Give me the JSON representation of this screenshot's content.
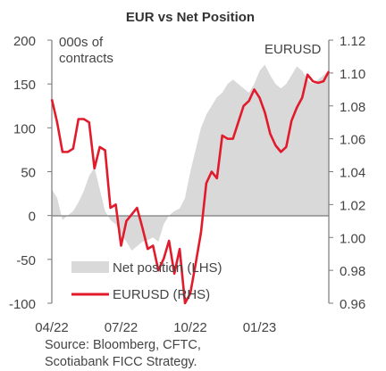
{
  "chart_data": {
    "type": "line",
    "title": "EUR vs Net Position",
    "left_axis_unit": "000s of contracts",
    "right_axis_unit": "EURUSD",
    "left_ticks": [
      "200",
      "150",
      "100",
      "50",
      "0",
      "-50",
      "-100"
    ],
    "left_tick_values": [
      200,
      150,
      100,
      50,
      0,
      -50,
      -100
    ],
    "left_ylim": [
      -100,
      200
    ],
    "right_ticks": [
      "1.12",
      "1.10",
      "1.08",
      "1.06",
      "1.04",
      "1.02",
      "1.00",
      "0.98",
      "0.96"
    ],
    "right_tick_values": [
      1.12,
      1.1,
      1.08,
      1.06,
      1.04,
      1.02,
      1.0,
      0.98,
      0.96
    ],
    "right_ylim": [
      0.96,
      1.12
    ],
    "x_ticks": [
      "04/22",
      "07/22",
      "10/22",
      "01/23"
    ],
    "x_tick_positions": [
      0,
      13,
      26,
      39
    ],
    "xlim": [
      0,
      52
    ],
    "series": [
      {
        "name": "Net position (LHS)",
        "axis": "left",
        "type": "area",
        "color": "#d9d9d9",
        "x": [
          0,
          1,
          2,
          3,
          4,
          5,
          6,
          7,
          8,
          9,
          10,
          11,
          12,
          13,
          14,
          15,
          16,
          17,
          18,
          19,
          20,
          21,
          22,
          23,
          24,
          25,
          26,
          27,
          28,
          29,
          30,
          31,
          32,
          33,
          34,
          35,
          36,
          37,
          38,
          39,
          40,
          41,
          42,
          43,
          44,
          45,
          46,
          47,
          48,
          49,
          50,
          51,
          52
        ],
        "values": [
          30,
          20,
          -5,
          0,
          5,
          15,
          28,
          45,
          55,
          30,
          5,
          -5,
          -10,
          -20,
          -30,
          -40,
          -35,
          -30,
          -28,
          -25,
          -30,
          -10,
          0,
          5,
          8,
          20,
          50,
          75,
          100,
          115,
          125,
          135,
          140,
          150,
          155,
          150,
          145,
          140,
          150,
          165,
          172,
          160,
          150,
          145,
          150,
          160,
          170,
          165,
          155,
          150,
          155,
          160,
          165
        ]
      },
      {
        "name": "EURUSD (RHS)",
        "axis": "right",
        "type": "line",
        "color": "#e11b2b",
        "x": [
          0,
          1,
          2,
          3,
          4,
          5,
          6,
          7,
          8,
          9,
          10,
          11,
          12,
          13,
          14,
          15,
          16,
          17,
          18,
          19,
          20,
          21,
          22,
          23,
          24,
          25,
          26,
          27,
          28,
          29,
          30,
          31,
          32,
          33,
          34,
          35,
          36,
          37,
          38,
          39,
          40,
          41,
          42,
          43,
          44,
          45,
          46,
          47,
          48,
          49,
          50,
          51,
          52
        ],
        "values": [
          1.084,
          1.07,
          1.052,
          1.052,
          1.054,
          1.072,
          1.072,
          1.07,
          1.042,
          1.055,
          1.053,
          1.018,
          1.02,
          0.995,
          1.01,
          1.014,
          1.018,
          1.006,
          0.993,
          0.995,
          0.98,
          0.987,
          0.998,
          0.978,
          0.993,
          0.96,
          0.966,
          0.984,
          1.003,
          1.033,
          1.04,
          1.036,
          1.062,
          1.06,
          1.06,
          1.07,
          1.08,
          1.083,
          1.09,
          1.085,
          1.076,
          1.063,
          1.056,
          1.052,
          1.055,
          1.071,
          1.079,
          1.085,
          1.099,
          1.095,
          1.094,
          1.095,
          1.101
        ]
      }
    ],
    "legend": [
      {
        "label": "Net position (LHS)",
        "swatch": "area"
      },
      {
        "label": "EURUSD (RHS)",
        "swatch": "line"
      }
    ],
    "legend_position": "bottom-center",
    "grid": false,
    "source": [
      "Source: Bloomberg, CFTC,",
      "Scotiabank FICC Strategy."
    ]
  }
}
